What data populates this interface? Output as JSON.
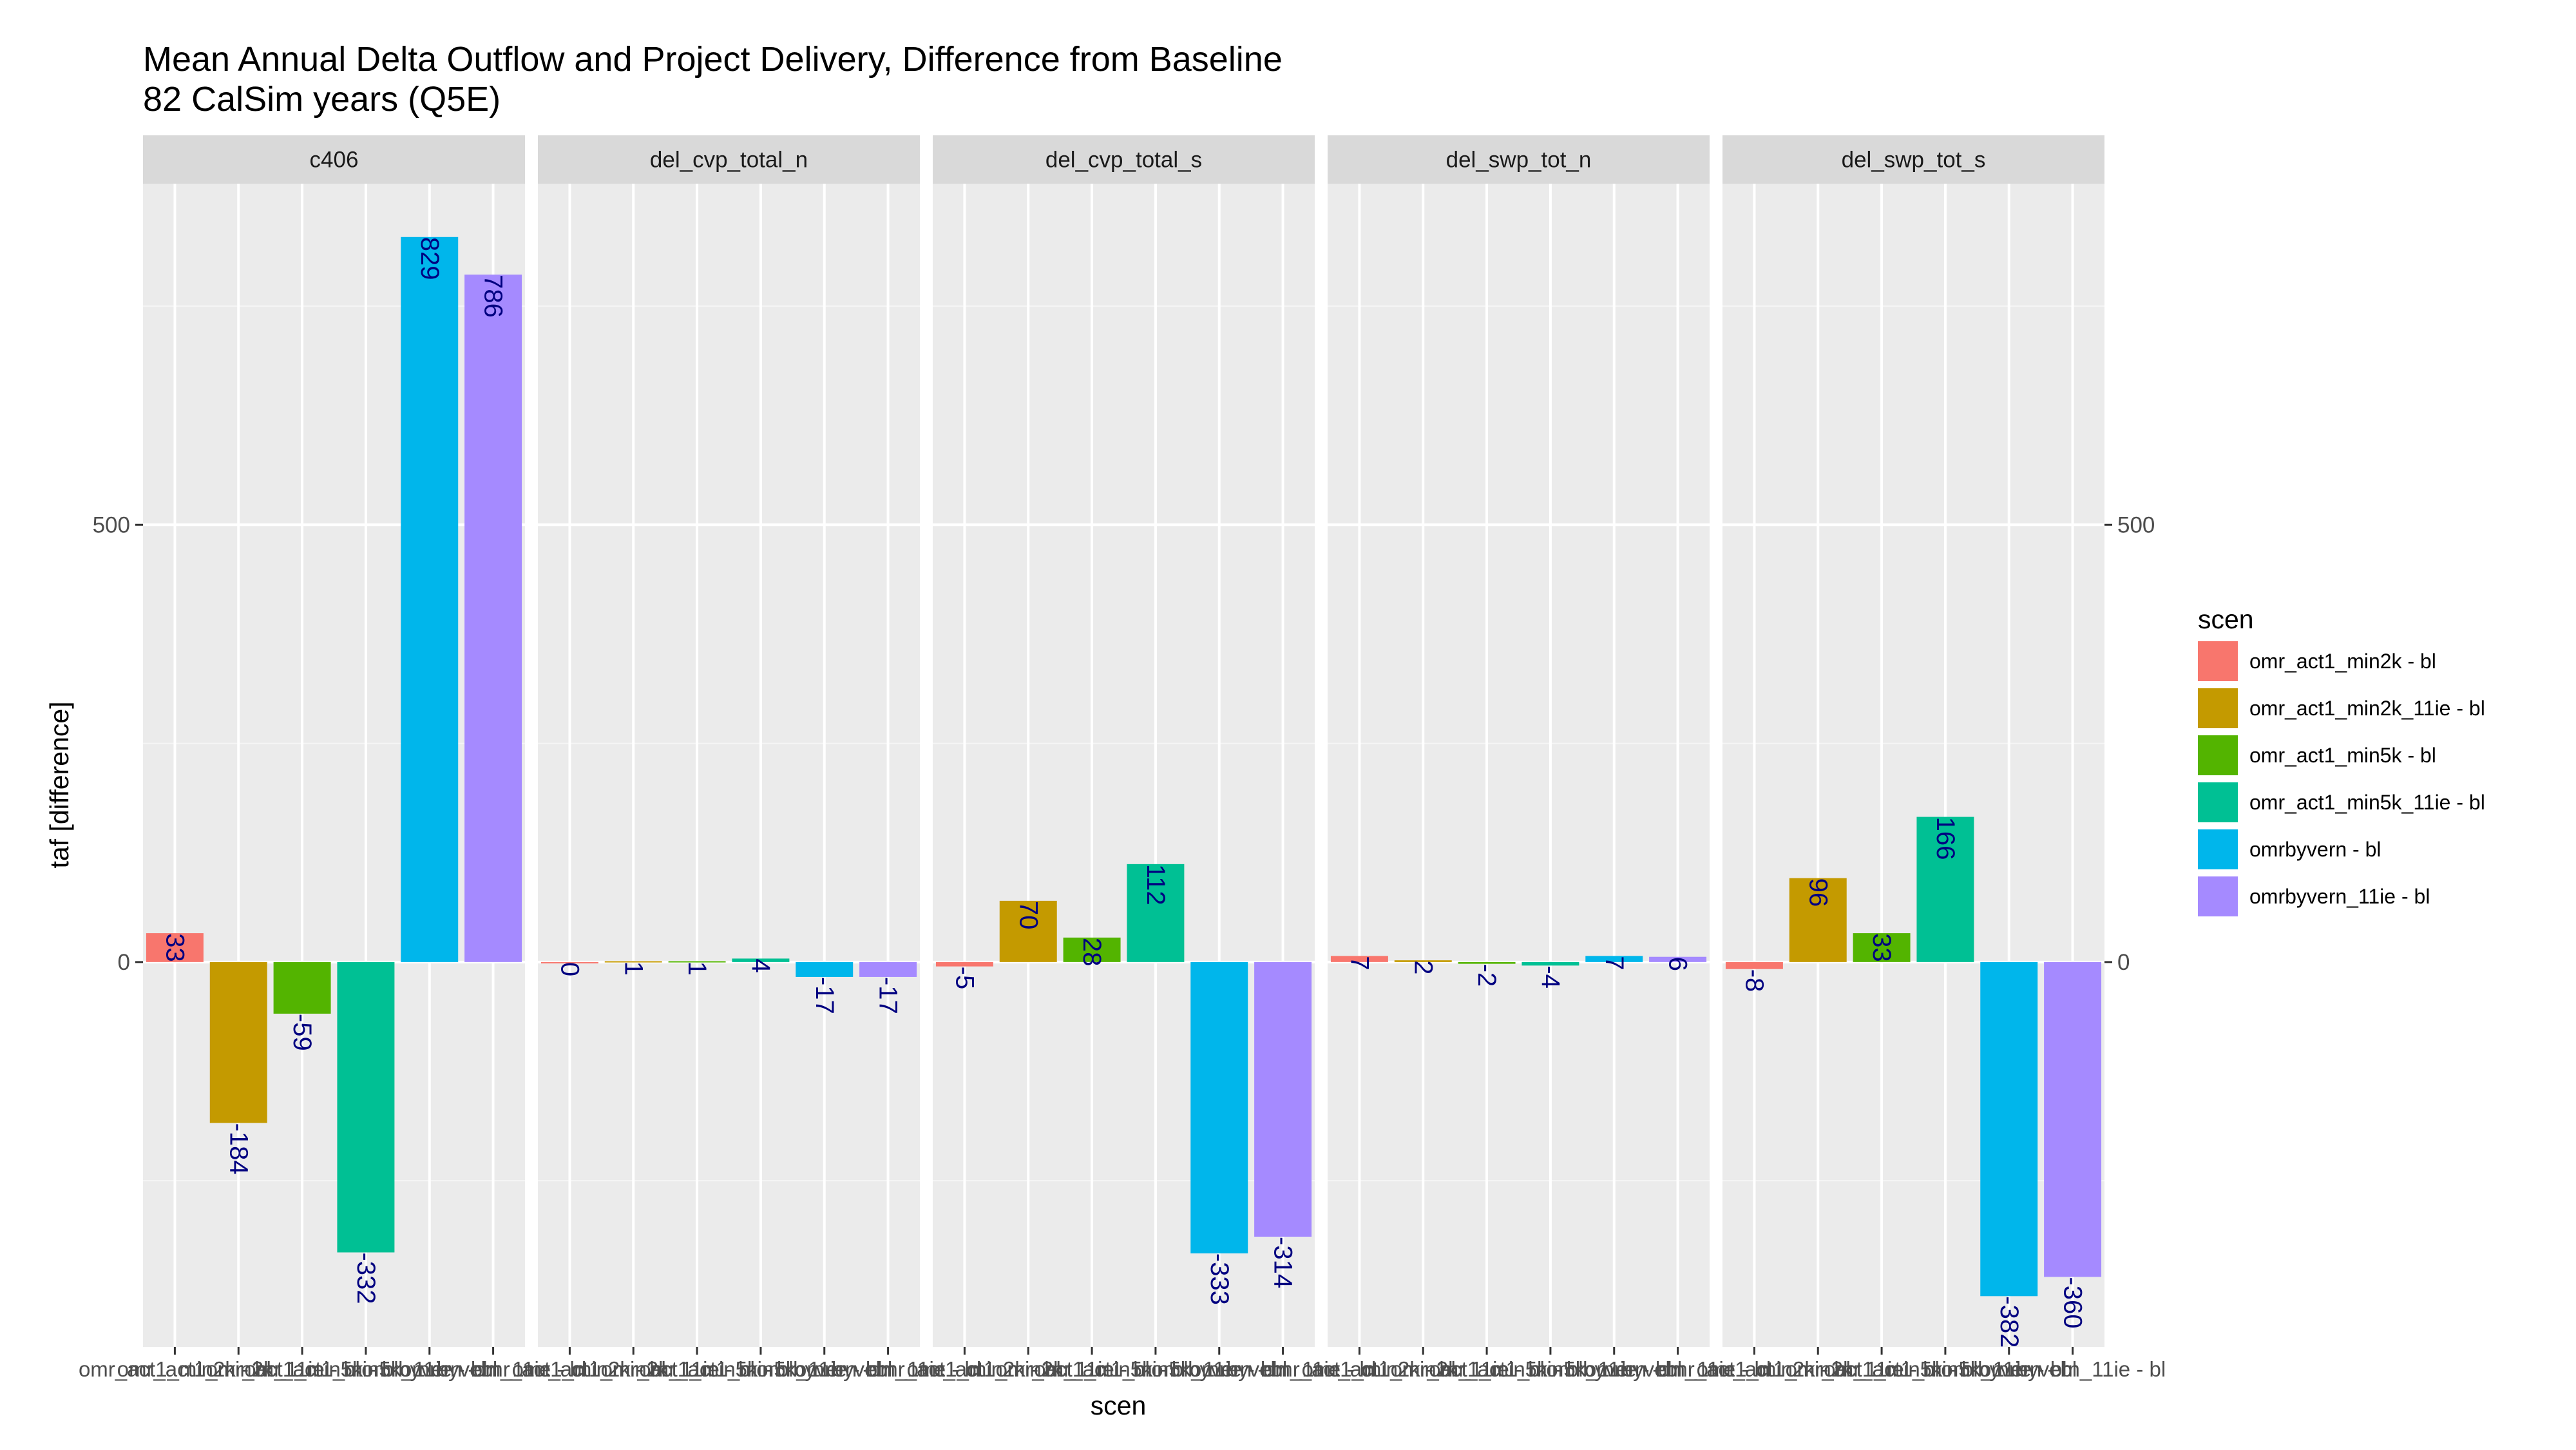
{
  "colors": {
    "panel_bg": "#EBEBEB",
    "strip_bg": "#D9D9D9",
    "grid_major": "#FFFFFF",
    "grid_minor": "#F5F5F5",
    "label": "#000080",
    "tick": "#333333"
  },
  "chart_data": {
    "type": "bar",
    "title": "Mean Annual Delta Outflow and Project Delivery, Difference from Baseline",
    "subtitle": "82 CalSim years (Q5E)",
    "xlabel": "scen",
    "ylabel": "taf [difference]",
    "ylim": [
      -440,
      890
    ],
    "yticks": [
      0,
      500
    ],
    "grid": true,
    "legend_position": "right",
    "legend_title": "scen",
    "categories": [
      "omr_act1_min2k - bl",
      "omr_act1_min2k_11ie - bl",
      "omr_act1_min5k - bl",
      "omr_act1_min5k_11ie - bl",
      "omrbyvern - bl",
      "omrbyvern_11ie - bl"
    ],
    "colors": [
      "#F8766D",
      "#C49A00",
      "#53B400",
      "#00C094",
      "#00B6EB",
      "#A58AFF"
    ],
    "facets": [
      {
        "name": "c406",
        "values": [
          33,
          -184,
          -59,
          -332,
          829,
          786
        ]
      },
      {
        "name": "del_cvp_total_n",
        "values": [
          0,
          1,
          1,
          4,
          -17,
          -17
        ]
      },
      {
        "name": "del_cvp_total_s",
        "values": [
          -5,
          70,
          28,
          112,
          -333,
          -314
        ]
      },
      {
        "name": "del_swp_tot_n",
        "values": [
          7,
          2,
          -2,
          -4,
          7,
          6
        ]
      },
      {
        "name": "del_swp_tot_s",
        "values": [
          -8,
          96,
          33,
          166,
          -382,
          -360
        ]
      }
    ]
  }
}
